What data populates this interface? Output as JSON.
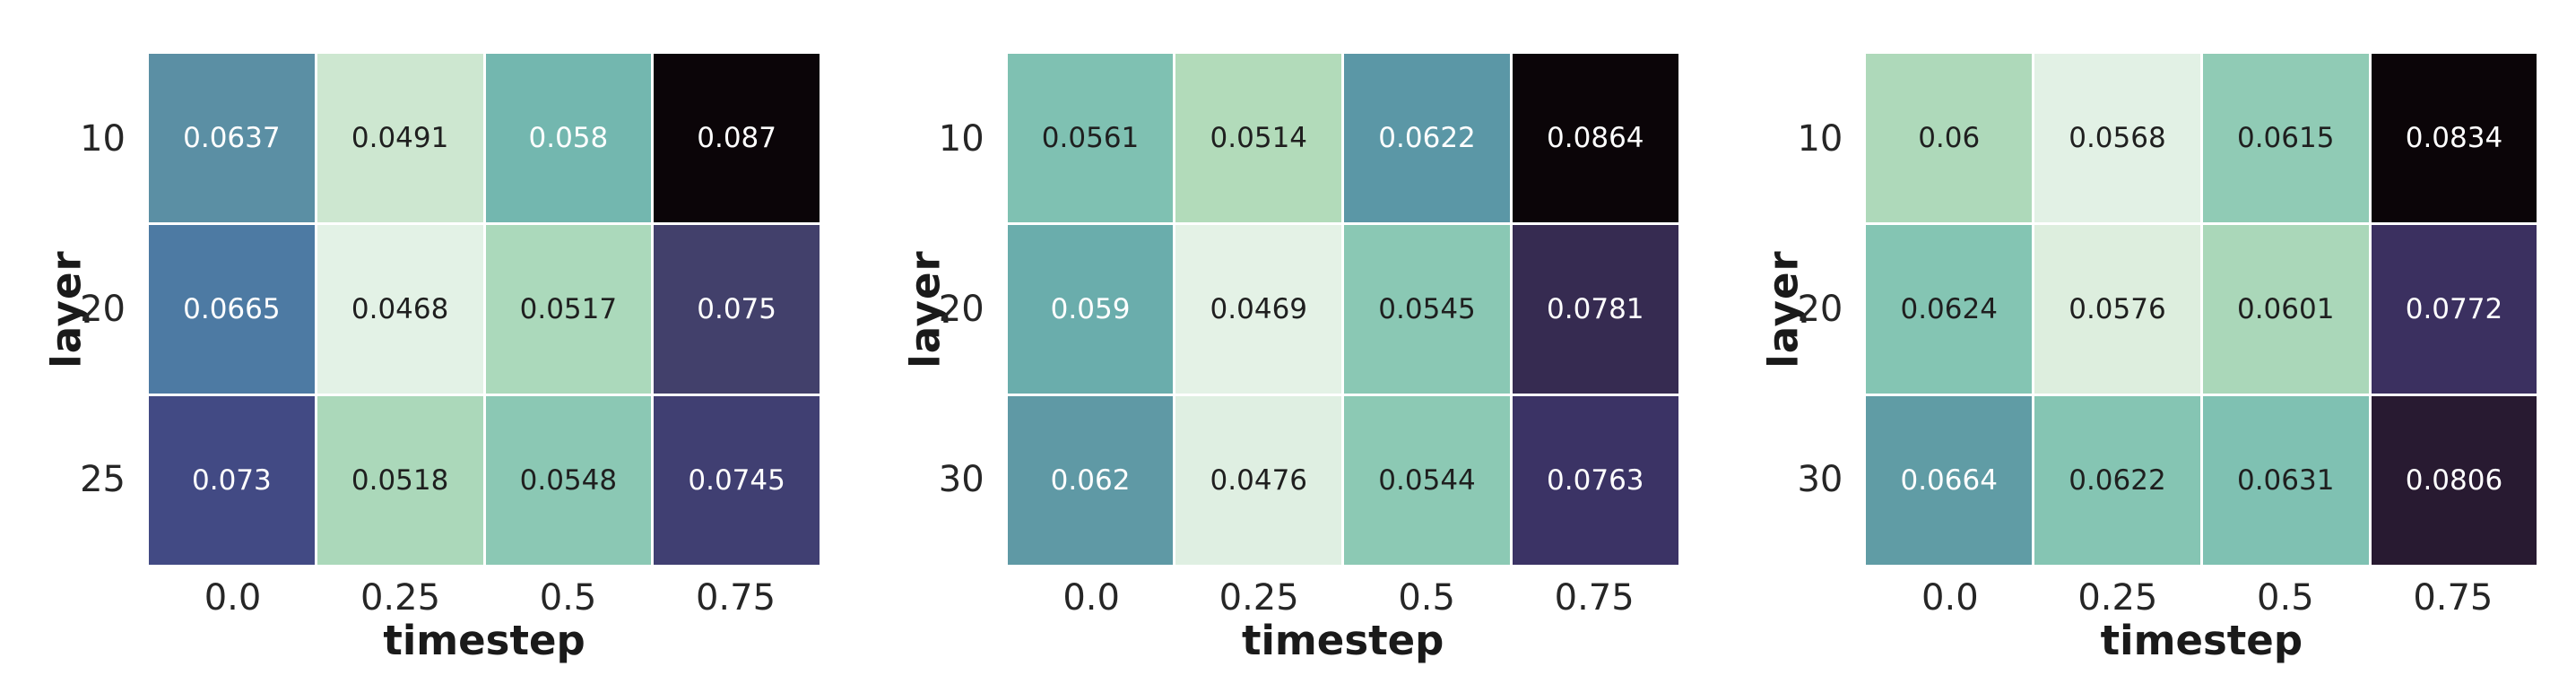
{
  "figure": {
    "background_color": "#ffffff",
    "tick_text_color": "#262626",
    "axis_label_color": "#1a1a1a",
    "gridline_color": "#ffffff"
  },
  "chart_data": [
    {
      "type": "heatmap",
      "title": "",
      "xlabel": "timestep",
      "ylabel": "layer",
      "x_ticks": [
        "0.0",
        "0.25",
        "0.5",
        "0.75"
      ],
      "y_ticks": [
        "10",
        "20",
        "25"
      ],
      "values": [
        [
          0.0637,
          0.0491,
          0.058,
          0.087
        ],
        [
          0.0665,
          0.0468,
          0.0517,
          0.075
        ],
        [
          0.073,
          0.0518,
          0.0548,
          0.0745
        ]
      ],
      "cells": [
        [
          {
            "label": "0.0637",
            "bg": "#5B8FA4",
            "fg": "#FFFFFF"
          },
          {
            "label": "0.0491",
            "bg": "#CDE7D0",
            "fg": "#1F1F1F"
          },
          {
            "label": "0.058",
            "bg": "#73B7AF",
            "fg": "#FFFFFF"
          },
          {
            "label": "0.087",
            "bg": "#0B0508",
            "fg": "#FFFFFF"
          }
        ],
        [
          {
            "label": "0.0665",
            "bg": "#4D7AA3",
            "fg": "#FFFFFF"
          },
          {
            "label": "0.0468",
            "bg": "#E3F2E6",
            "fg": "#1F1F1F"
          },
          {
            "label": "0.0517",
            "bg": "#ABD9BB",
            "fg": "#1F1F1F"
          },
          {
            "label": "0.075",
            "bg": "#42406B",
            "fg": "#FFFFFF"
          }
        ],
        [
          {
            "label": "0.073",
            "bg": "#424A84",
            "fg": "#FFFFFF"
          },
          {
            "label": "0.0518",
            "bg": "#ABD8BA",
            "fg": "#1F1F1F"
          },
          {
            "label": "0.0548",
            "bg": "#8BC8B4",
            "fg": "#1F1F1F"
          },
          {
            "label": "0.0745",
            "bg": "#403F72",
            "fg": "#FFFFFF"
          }
        ]
      ],
      "layout_hints": {
        "colormap": "mako_r",
        "grid": false,
        "legend": "none",
        "annotated": true
      }
    },
    {
      "type": "heatmap",
      "title": "",
      "xlabel": "timestep",
      "ylabel": "layer",
      "x_ticks": [
        "0.0",
        "0.25",
        "0.5",
        "0.75"
      ],
      "y_ticks": [
        "10",
        "20",
        "30"
      ],
      "values": [
        [
          0.0561,
          0.0514,
          0.0622,
          0.0864
        ],
        [
          0.059,
          0.0469,
          0.0545,
          0.0781
        ],
        [
          0.062,
          0.0476,
          0.0544,
          0.0763
        ]
      ],
      "cells": [
        [
          {
            "label": "0.0561",
            "bg": "#7FC1B2",
            "fg": "#1F1F1F"
          },
          {
            "label": "0.0514",
            "bg": "#B2DBBA",
            "fg": "#1F1F1F"
          },
          {
            "label": "0.0622",
            "bg": "#5B97A6",
            "fg": "#FFFFFF"
          },
          {
            "label": "0.0864",
            "bg": "#0B0508",
            "fg": "#FFFFFF"
          }
        ],
        [
          {
            "label": "0.059",
            "bg": "#6AADAC",
            "fg": "#FFFFFF"
          },
          {
            "label": "0.0469",
            "bg": "#E4F2E6",
            "fg": "#1F1F1F"
          },
          {
            "label": "0.0545",
            "bg": "#8AC8B4",
            "fg": "#1F1F1F"
          },
          {
            "label": "0.0781",
            "bg": "#362B51",
            "fg": "#FFFFFF"
          }
        ],
        [
          {
            "label": "0.062",
            "bg": "#5F99A5",
            "fg": "#FFFFFF"
          },
          {
            "label": "0.0476",
            "bg": "#DFEFE2",
            "fg": "#1F1F1F"
          },
          {
            "label": "0.0544",
            "bg": "#8CC9B4",
            "fg": "#1F1F1F"
          },
          {
            "label": "0.0763",
            "bg": "#3B3365",
            "fg": "#FFFFFF"
          }
        ]
      ],
      "layout_hints": {
        "colormap": "mako_r",
        "grid": false,
        "legend": "none",
        "annotated": true
      }
    },
    {
      "type": "heatmap",
      "title": "",
      "xlabel": "timestep",
      "ylabel": "layer",
      "x_ticks": [
        "0.0",
        "0.25",
        "0.5",
        "0.75"
      ],
      "y_ticks": [
        "10",
        "20",
        "30"
      ],
      "values": [
        [
          0.06,
          0.0568,
          0.0615,
          0.0834
        ],
        [
          0.0624,
          0.0576,
          0.0601,
          0.0772
        ],
        [
          0.0664,
          0.0622,
          0.0631,
          0.0806
        ]
      ],
      "cells": [
        [
          {
            "label": "0.06",
            "bg": "#AED9BA",
            "fg": "#1F1F1F"
          },
          {
            "label": "0.0568",
            "bg": "#E2F1E5",
            "fg": "#1F1F1F"
          },
          {
            "label": "0.0615",
            "bg": "#90CBB5",
            "fg": "#1F1F1F"
          },
          {
            "label": "0.0834",
            "bg": "#0B0508",
            "fg": "#FFFFFF"
          }
        ],
        [
          {
            "label": "0.0624",
            "bg": "#84C5B3",
            "fg": "#1F1F1F"
          },
          {
            "label": "0.0576",
            "bg": "#DDEEDE",
            "fg": "#1F1F1F"
          },
          {
            "label": "0.0601",
            "bg": "#AAD7B9",
            "fg": "#1F1F1F"
          },
          {
            "label": "0.0772",
            "bg": "#3B3060",
            "fg": "#FFFFFF"
          }
        ],
        [
          {
            "label": "0.0664",
            "bg": "#609CA5",
            "fg": "#FFFFFF"
          },
          {
            "label": "0.0622",
            "bg": "#85C5B3",
            "fg": "#1F1F1F"
          },
          {
            "label": "0.0631",
            "bg": "#7FC1B2",
            "fg": "#1F1F1F"
          },
          {
            "label": "0.0806",
            "bg": "#281A31",
            "fg": "#FFFFFF"
          }
        ]
      ],
      "layout_hints": {
        "colormap": "mako_r",
        "grid": false,
        "legend": "none",
        "annotated": true
      }
    }
  ]
}
